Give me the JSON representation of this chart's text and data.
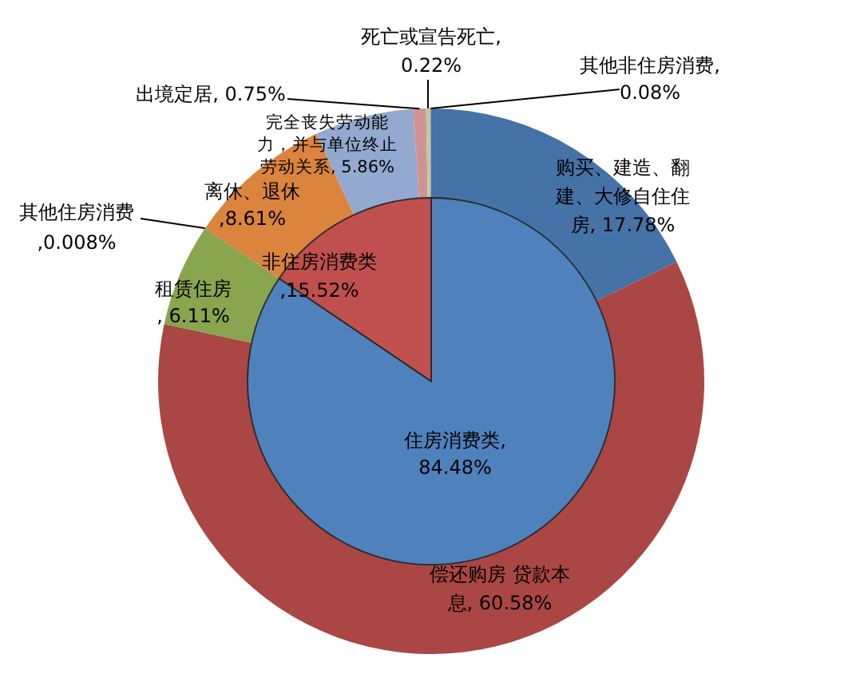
{
  "chart_data": [
    {
      "type": "pie",
      "categories": [
        "住房消费类",
        "非住房消费类"
      ],
      "values": [
        84.48,
        15.52
      ],
      "colors": [
        "#4f81bd",
        "#c0504d"
      ],
      "value_labels": [
        ", 84.48%",
        ",15.52%"
      ]
    },
    {
      "type": "donut",
      "categories": [
        "购买、建造、翻建、大修自住住房",
        "偿还购房 贷款本息",
        "租赁住房",
        "其他住房消费",
        "离休、退休",
        "完全丧失劳动能力，并与单位终止劳动关系",
        "出境定居",
        "死亡或宣告死亡",
        "其他非住房消费"
      ],
      "values": [
        17.78,
        60.58,
        6.11,
        0.008,
        8.61,
        5.86,
        0.75,
        0.22,
        0.08
      ],
      "colors": [
        "#4572a7",
        "#aa4643",
        "#89a54e",
        "#71588f",
        "#db843d",
        "#93a9cf",
        "#d19392",
        "#b9cd96",
        "#a99bbd"
      ],
      "value_labels": [
        ", 17.78%",
        ", 60.58%",
        ", 6.11%",
        ",0.008%",
        ",8.61%",
        ", 5.86%",
        ", 0.75%",
        ", 0.22%",
        ", 0.08%"
      ]
    }
  ]
}
